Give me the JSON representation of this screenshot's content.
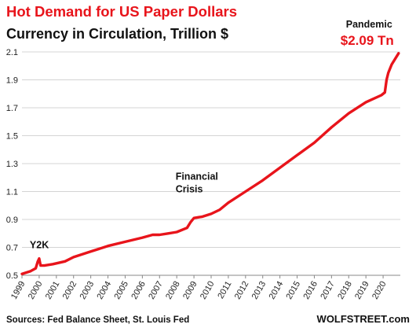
{
  "colors": {
    "accent": "#e8141b",
    "grid": "#d4d4d4",
    "text": "#111111"
  },
  "footer": {
    "source": "Sources: Fed Balance Sheet, St. Louis Fed",
    "brand": "WOLFSTREET.com"
  },
  "chart_data": {
    "type": "line",
    "title": "Hot Demand for US Paper Dollars",
    "subtitle": "Currency in Circulation,  Trillion $",
    "xlabel": "",
    "ylabel": "",
    "ylim": [
      0.5,
      2.1
    ],
    "xlim": [
      1999.0,
      2021.0
    ],
    "y_ticks": [
      "0.5",
      "0.7",
      "0.9",
      "1.1",
      "1.3",
      "1.5",
      "1.7",
      "1.9",
      "2.1"
    ],
    "x_ticks": [
      "1999",
      "2000",
      "2001",
      "2002",
      "2003",
      "2004",
      "2005",
      "2006",
      "2007",
      "2008",
      "2009",
      "2010",
      "2011",
      "2012",
      "2013",
      "2014",
      "2015",
      "2016",
      "2017",
      "2018",
      "2019",
      "2020"
    ],
    "grid": "horizontal",
    "series": [
      {
        "color": "#e8141b",
        "x": [
          1999.0,
          1999.5,
          1999.8,
          1999.92,
          2000.0,
          2000.08,
          2000.3,
          2000.8,
          2001.5,
          2002.0,
          2003.0,
          2004.0,
          2005.0,
          2006.0,
          2006.6,
          2007.0,
          2007.5,
          2008.0,
          2008.6,
          2008.8,
          2009.0,
          2009.5,
          2010.0,
          2010.5,
          2011.0,
          2012.0,
          2013.0,
          2014.0,
          2015.0,
          2016.0,
          2017.0,
          2018.0,
          2019.0,
          2019.9,
          2020.1,
          2020.2,
          2020.3,
          2020.5,
          2020.9
        ],
        "y": [
          0.51,
          0.53,
          0.55,
          0.6,
          0.62,
          0.57,
          0.57,
          0.58,
          0.6,
          0.63,
          0.67,
          0.71,
          0.74,
          0.77,
          0.79,
          0.79,
          0.8,
          0.81,
          0.84,
          0.88,
          0.91,
          0.92,
          0.94,
          0.97,
          1.02,
          1.1,
          1.18,
          1.27,
          1.36,
          1.45,
          1.56,
          1.66,
          1.74,
          1.79,
          1.81,
          1.9,
          1.95,
          2.01,
          2.09
        ]
      }
    ],
    "annotations": [
      {
        "text": "Y2K",
        "x": 2000.0,
        "y": 0.62
      },
      {
        "text": "Financial",
        "x": 2008.8,
        "y": 0.88
      },
      {
        "text": "Crisis",
        "x": 2008.8,
        "y": 0.88
      },
      {
        "text": "Pandemic",
        "x": 2020.9,
        "y": 2.09
      },
      {
        "text": "$2.09 Tn",
        "x": 2020.9,
        "y": 2.09
      }
    ]
  }
}
